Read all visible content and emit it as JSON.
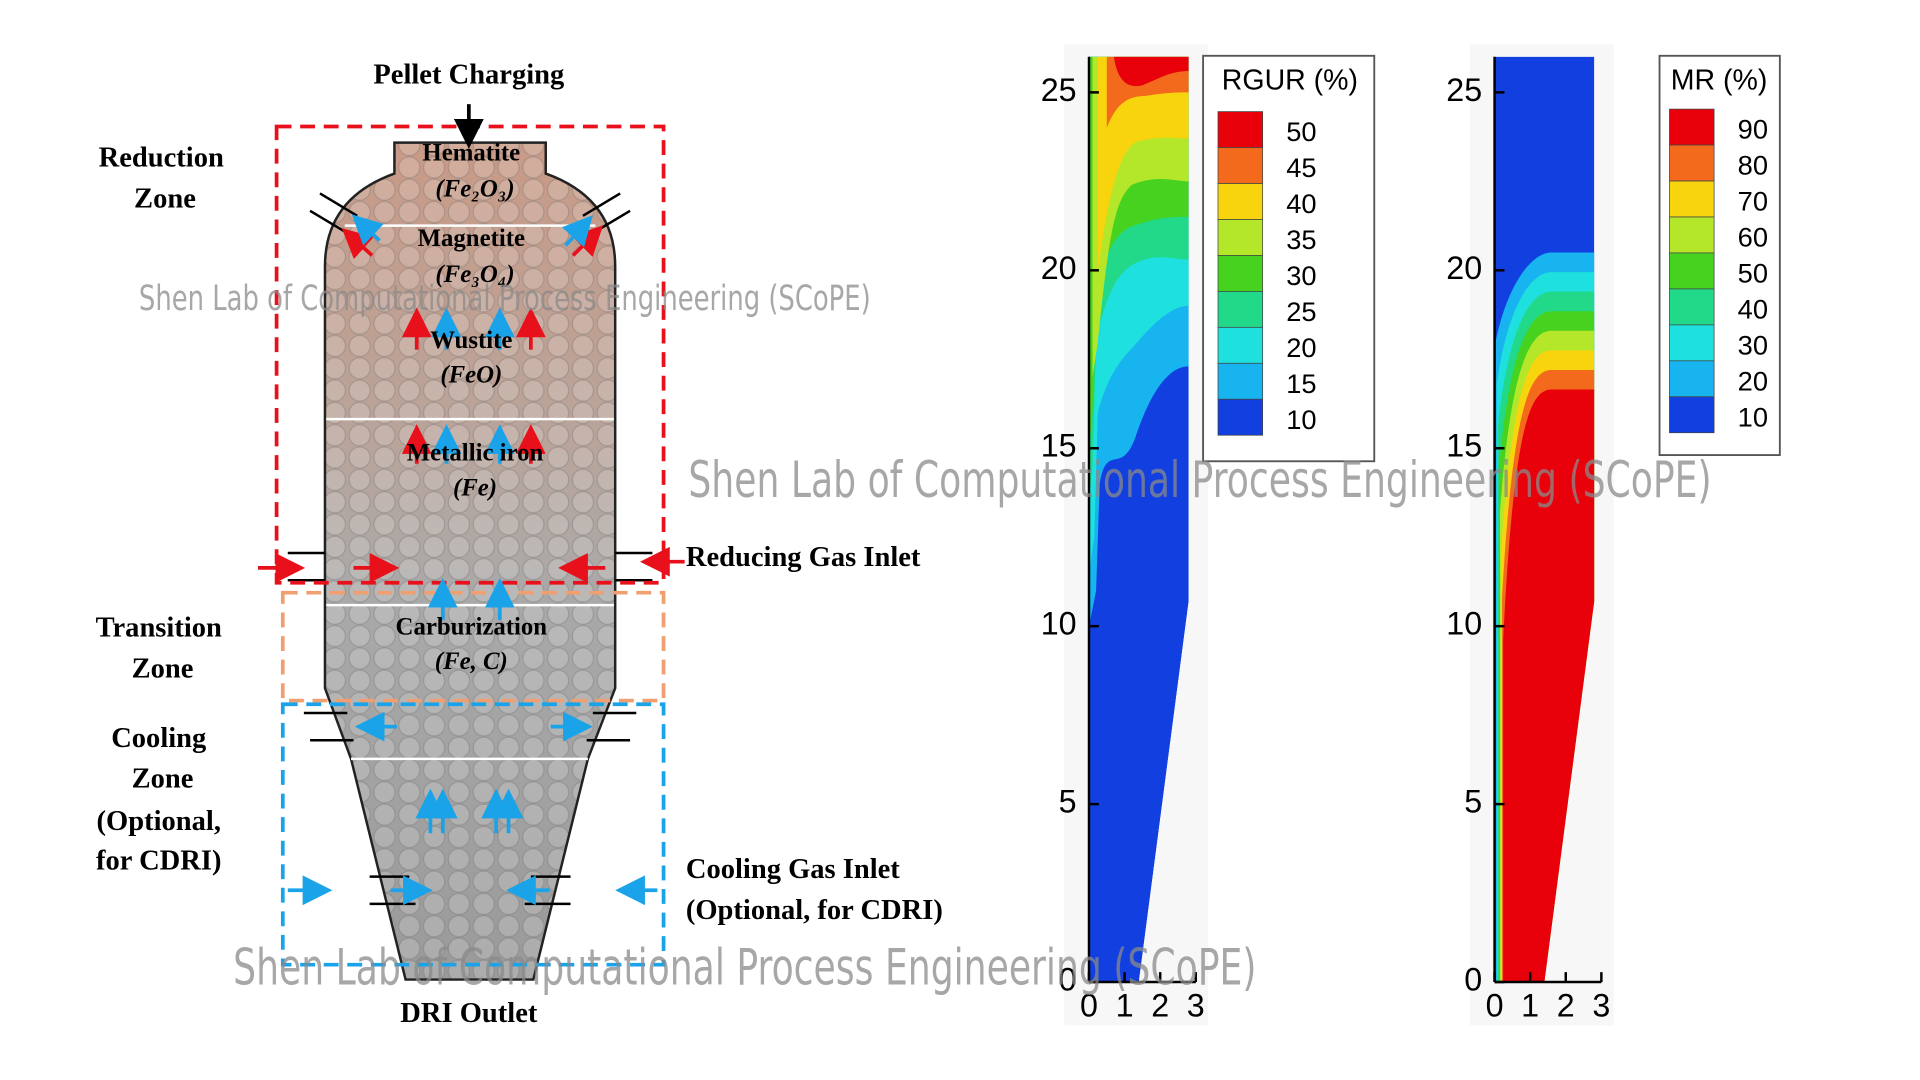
{
  "diagram": {
    "top_label": "Pellet Charging",
    "bottom_label": "DRI Outlet",
    "zones": [
      {
        "lines": [
          "Reduction",
          "Zone"
        ]
      },
      {
        "lines": [
          "Transition",
          "Zone"
        ]
      },
      {
        "lines": [
          "Cooling",
          "Zone",
          "(Optional,",
          "for CDRI)"
        ]
      }
    ],
    "layers": [
      {
        "name": "Hematite",
        "formula": "(Fe₂O₃)"
      },
      {
        "name": "Magnetite",
        "formula": "(Fe₃O₄)"
      },
      {
        "name": "Wustite",
        "formula": "(FeO)"
      },
      {
        "name": "Metallic iron",
        "formula": "(Fe)"
      },
      {
        "name": "Carburization",
        "formula": "(Fe, C)"
      }
    ],
    "reducing_inlet": "Reducing Gas Inlet",
    "cooling_inlet": [
      "Cooling Gas Inlet",
      "(Optional, for CDRI)"
    ]
  },
  "watermark": "Shen Lab of Computational Process Engineering (SCoPE)",
  "plots": [
    {
      "colorbar_title": "RGUR (%)",
      "levels": [
        50,
        45,
        40,
        35,
        30,
        25,
        20,
        15,
        10
      ],
      "colors": [
        "#e8000b",
        "#f46a1c",
        "#f8d40e",
        "#b4e62a",
        "#46d21e",
        "#22d98a",
        "#1ee0de",
        "#17b4f0",
        "#1240e0"
      ],
      "xlim": [
        0,
        3
      ],
      "ylim": [
        0,
        26
      ],
      "xticks": [
        0,
        1,
        2,
        3
      ],
      "yticks": [
        0,
        5,
        10,
        15,
        20,
        25
      ]
    },
    {
      "colorbar_title": "MR (%)",
      "levels": [
        90,
        80,
        70,
        60,
        50,
        40,
        30,
        20,
        10
      ],
      "colors": [
        "#e8000b",
        "#f46a1c",
        "#f8d40e",
        "#b4e62a",
        "#46d21e",
        "#22d98a",
        "#1ee0de",
        "#17b4f0",
        "#1240e0"
      ],
      "xlim": [
        0,
        3
      ],
      "ylim": [
        0,
        26
      ],
      "xticks": [
        0,
        1,
        2,
        3
      ],
      "yticks": [
        0,
        5,
        10,
        15,
        20,
        25
      ]
    }
  ]
}
